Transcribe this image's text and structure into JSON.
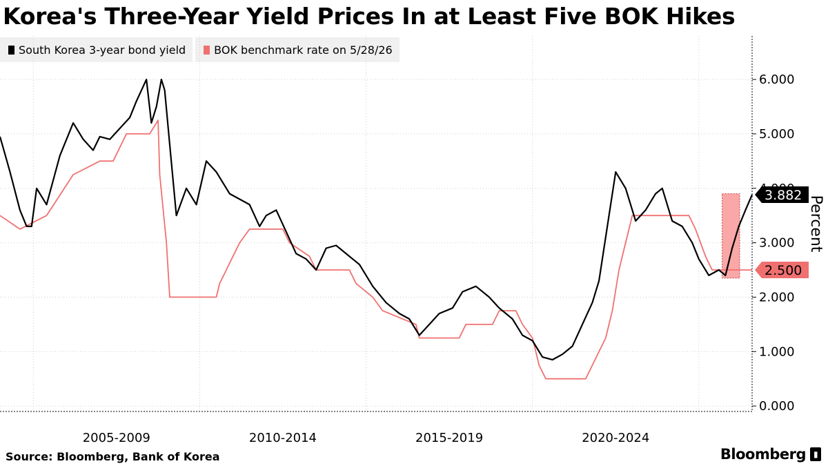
{
  "title": "Korea's Three-Year Yield Prices In at Least Five BOK Hikes",
  "legend": [
    {
      "label": "South Korea 3-year bond yield",
      "color": "#000000"
    },
    {
      "label": "BOK benchmark rate on 5/28/26",
      "color": "#f07070"
    }
  ],
  "source": "Source:  Bloomberg, Bank of Korea",
  "brand": "Bloomberg",
  "colors": {
    "yield": "#000000",
    "bok": "#f07070",
    "highlight": "#f78a8a",
    "grid": "#cccccc"
  },
  "chart_data": {
    "type": "line",
    "xlabel": "",
    "ylabel": "Percent",
    "xlim": [
      2004.0,
      2026.6
    ],
    "ylim": [
      -0.1,
      6.8
    ],
    "yticks": [
      "0.000",
      "1.000",
      "2.000",
      "3.000",
      "4.000",
      "5.000",
      "6.000"
    ],
    "ytick_values": [
      0,
      1,
      2,
      3,
      4,
      5,
      6
    ],
    "xtick_labels": [
      "2005-2009",
      "2010-2014",
      "2015-2019",
      "2020-2024"
    ],
    "xtick_centers": [
      2007.5,
      2012.5,
      2017.5,
      2022.5
    ],
    "grid": true,
    "legend_position": "top-left",
    "last_value_labels": [
      {
        "series": "South Korea 3-year bond yield",
        "value": "3.882"
      },
      {
        "series": "BOK benchmark rate on 5/28/26",
        "value": "2.500"
      }
    ],
    "highlight_range": {
      "x": [
        2025.7,
        2026.8
      ],
      "y": [
        2.35,
        3.9
      ]
    },
    "series": [
      {
        "name": "South Korea 3-year bond yield",
        "x": [
          2004.0,
          2004.3,
          2004.6,
          2004.8,
          2004.95,
          2005.1,
          2005.4,
          2005.8,
          2006.2,
          2006.5,
          2006.8,
          2007.0,
          2007.3,
          2007.6,
          2007.9,
          2008.1,
          2008.4,
          2008.55,
          2008.7,
          2008.85,
          2008.95,
          2009.1,
          2009.3,
          2009.6,
          2009.9,
          2010.2,
          2010.5,
          2010.9,
          2011.2,
          2011.5,
          2011.8,
          2012.0,
          2012.3,
          2012.6,
          2012.9,
          2013.2,
          2013.5,
          2013.8,
          2014.1,
          2014.4,
          2014.8,
          2015.2,
          2015.6,
          2016.0,
          2016.3,
          2016.6,
          2016.9,
          2017.2,
          2017.6,
          2017.9,
          2018.3,
          2018.7,
          2019.0,
          2019.4,
          2019.7,
          2020.0,
          2020.3,
          2020.6,
          2020.9,
          2021.2,
          2021.5,
          2021.8,
          2022.0,
          2022.3,
          2022.5,
          2022.8,
          2023.1,
          2023.4,
          2023.7,
          2023.9,
          2024.2,
          2024.5,
          2024.8,
          2025.0,
          2025.3,
          2025.6,
          2025.8,
          2026.0,
          2026.2,
          2026.4,
          2026.6
        ],
        "values": [
          4.95,
          4.3,
          3.6,
          3.3,
          3.3,
          4.0,
          3.7,
          4.6,
          5.2,
          4.9,
          4.7,
          4.95,
          4.9,
          5.1,
          5.3,
          5.6,
          6.0,
          5.2,
          5.5,
          6.0,
          5.8,
          4.8,
          3.5,
          4.0,
          3.7,
          4.5,
          4.3,
          3.9,
          3.8,
          3.7,
          3.3,
          3.5,
          3.6,
          3.2,
          2.8,
          2.7,
          2.5,
          2.9,
          2.95,
          2.8,
          2.6,
          2.2,
          1.9,
          1.7,
          1.6,
          1.3,
          1.5,
          1.7,
          1.8,
          2.1,
          2.2,
          2.0,
          1.8,
          1.6,
          1.3,
          1.2,
          0.9,
          0.85,
          0.95,
          1.1,
          1.5,
          1.9,
          2.3,
          3.5,
          4.3,
          4.0,
          3.4,
          3.6,
          3.9,
          4.0,
          3.4,
          3.3,
          3.0,
          2.7,
          2.4,
          2.5,
          2.4,
          2.9,
          3.3,
          3.6,
          3.882
        ]
      },
      {
        "name": "BOK benchmark rate on 5/28/26",
        "x": [
          2004.0,
          2004.6,
          2005.4,
          2006.2,
          2007.0,
          2007.4,
          2007.8,
          2008.5,
          2008.75,
          2008.8,
          2009.0,
          2009.1,
          2010.5,
          2010.6,
          2010.8,
          2011.0,
          2011.2,
          2011.5,
          2012.5,
          2012.7,
          2013.3,
          2013.5,
          2014.5,
          2014.7,
          2015.2,
          2015.5,
          2016.5,
          2016.6,
          2017.8,
          2018.0,
          2018.8,
          2019.0,
          2019.5,
          2019.7,
          2020.0,
          2020.2,
          2020.4,
          2021.6,
          2021.8,
          2022.0,
          2022.2,
          2022.4,
          2022.6,
          2022.8,
          2023.0,
          2024.7,
          2024.9,
          2025.2,
          2025.4,
          2026.6
        ],
        "values": [
          3.5,
          3.25,
          3.5,
          4.25,
          4.5,
          4.5,
          5.0,
          5.0,
          5.25,
          4.25,
          3.0,
          2.0,
          2.0,
          2.25,
          2.5,
          2.75,
          3.0,
          3.25,
          3.25,
          3.0,
          2.75,
          2.5,
          2.5,
          2.25,
          2.0,
          1.75,
          1.5,
          1.25,
          1.25,
          1.5,
          1.5,
          1.75,
          1.75,
          1.5,
          1.25,
          0.75,
          0.5,
          0.5,
          0.75,
          1.0,
          1.25,
          1.75,
          2.5,
          3.0,
          3.5,
          3.5,
          3.25,
          2.75,
          2.5,
          2.5
        ]
      }
    ]
  }
}
